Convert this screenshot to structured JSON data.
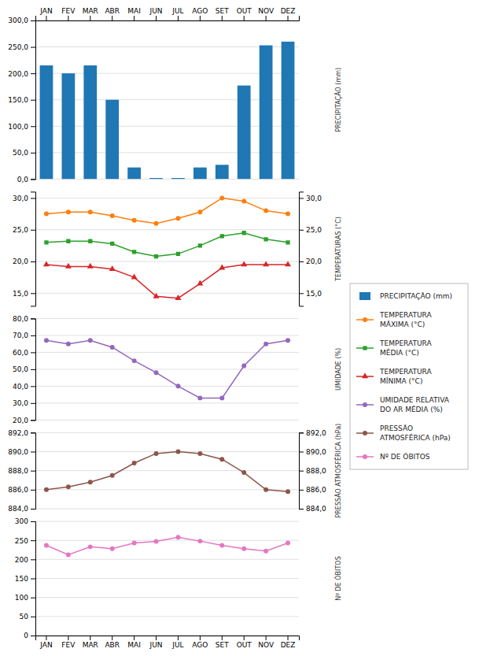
{
  "chart_data": [
    {
      "type": "bar",
      "ylabel": "PRECIPITAÇÃO (mm)",
      "categories": [
        "JAN",
        "FEV",
        "MAR",
        "ABR",
        "MAI",
        "JUN",
        "JUL",
        "AGO",
        "SET",
        "OUT",
        "NOV",
        "DEZ"
      ],
      "series": [
        {
          "name": "PRECIPITAÇÃO (mm)",
          "values": [
            215,
            200,
            215,
            150,
            22,
            2,
            2,
            22,
            27,
            177,
            253,
            260
          ]
        }
      ],
      "ylim": [
        0,
        300
      ],
      "yticks": [
        {
          "value": 0,
          "label": "0,0"
        },
        {
          "value": 50,
          "label": "50,0"
        },
        {
          "value": 100,
          "label": "100,0"
        },
        {
          "value": 150,
          "label": "150,0"
        },
        {
          "value": 200,
          "label": "200,0"
        },
        {
          "value": 250,
          "label": "250,0"
        },
        {
          "value": 300,
          "label": "300,0"
        }
      ],
      "grid": true,
      "legend": "right"
    },
    {
      "type": "line",
      "ylabel": "TEMPERATURAS (°C)",
      "categories": [
        "JAN",
        "FEV",
        "MAR",
        "ABR",
        "MAI",
        "JUN",
        "JUL",
        "AGO",
        "SET",
        "OUT",
        "NOV",
        "DEZ"
      ],
      "series": [
        {
          "name": "TEMPERATURA\nMÁXIMA (°C)",
          "marker": "circle",
          "values": [
            27.5,
            27.8,
            27.8,
            27.2,
            26.5,
            26.0,
            26.8,
            27.8,
            30.0,
            29.5,
            28.0,
            27.5
          ]
        },
        {
          "name": "TEMPERATURA\nMÉDIA (°C)",
          "marker": "square",
          "values": [
            23.0,
            23.2,
            23.2,
            22.8,
            21.5,
            20.8,
            21.2,
            22.5,
            24.0,
            24.5,
            23.5,
            23.0
          ]
        },
        {
          "name": "TEMPERATURA\nMÍNIMA (°C)",
          "marker": "triangle",
          "values": [
            19.5,
            19.2,
            19.2,
            18.8,
            17.5,
            14.5,
            14.2,
            16.5,
            19.0,
            19.5,
            19.5,
            19.5
          ]
        }
      ],
      "ylim": [
        13,
        31
      ],
      "yticks": [
        {
          "value": 15,
          "label": "15,0"
        },
        {
          "value": 20,
          "label": "20,0"
        },
        {
          "value": 25,
          "label": "25,0"
        },
        {
          "value": 30,
          "label": "30,0"
        }
      ],
      "y2lim": [
        13,
        31
      ],
      "y2ticks": [
        {
          "value": 15,
          "label": "15,0"
        },
        {
          "value": 20,
          "label": "20,0"
        },
        {
          "value": 25,
          "label": "25,0"
        },
        {
          "value": 30,
          "label": "30,0"
        }
      ],
      "grid": true,
      "tick_labels": "y",
      "legend": "right"
    },
    {
      "type": "line",
      "ylabel": "UMIDADE (%)",
      "categories": [
        "JAN",
        "FEV",
        "MAR",
        "ABR",
        "MAI",
        "JUN",
        "JUL",
        "AGO",
        "SET",
        "OUT",
        "NOV",
        "DEZ"
      ],
      "series": [
        {
          "name": "UMIDADE RELATIVA\nDO AR MÉDIA (%)",
          "marker": "circle",
          "values": [
            67,
            65,
            67,
            63,
            55,
            48,
            40,
            33,
            33,
            52,
            65,
            67
          ]
        }
      ],
      "ylim": [
        20,
        80
      ],
      "yticks": [
        {
          "value": 20,
          "label": "20,0"
        },
        {
          "value": 30,
          "label": "30,0"
        },
        {
          "value": 40,
          "label": "40,0"
        },
        {
          "value": 50,
          "label": "50,0"
        },
        {
          "value": 60,
          "label": "60,0"
        },
        {
          "value": 70,
          "label": "70,0"
        },
        {
          "value": 80,
          "label": "80,0"
        }
      ],
      "grid": true,
      "tick_labels": "y",
      "legend": "right"
    },
    {
      "type": "line",
      "ylabel": "PRESSÃO ATMOSFÉRICA (hPa)",
      "categories": [
        "JAN",
        "FEV",
        "MAR",
        "ABR",
        "MAI",
        "JUN",
        "JUL",
        "AGO",
        "SET",
        "OUT",
        "NOV",
        "DEZ"
      ],
      "series": [
        {
          "name": "PRESSÃO\nATMOSFÉRICA (hPa)",
          "marker": "circle",
          "values": [
            886.0,
            886.3,
            886.8,
            887.5,
            888.8,
            889.8,
            890.0,
            889.8,
            889.2,
            887.8,
            886.0,
            885.8
          ]
        }
      ],
      "ylim": [
        884,
        892
      ],
      "yticks": [
        {
          "value": 884,
          "label": "884,0"
        },
        {
          "value": 886,
          "label": "886,0"
        },
        {
          "value": 888,
          "label": "888,0"
        },
        {
          "value": 890,
          "label": "890,0"
        },
        {
          "value": 892,
          "label": "892,0"
        }
      ],
      "y2lim": [
        884,
        892
      ],
      "y2ticks": [
        {
          "value": 884,
          "label": "884,0"
        },
        {
          "value": 886,
          "label": "886,0"
        },
        {
          "value": 888,
          "label": "888,0"
        },
        {
          "value": 890,
          "label": "890,0"
        },
        {
          "value": 892,
          "label": "892,0"
        }
      ],
      "grid": true,
      "tick_labels": "y",
      "legend": "right"
    },
    {
      "type": "line",
      "ylabel": "Nº DE ÓBITOS",
      "categories": [
        "JAN",
        "FEV",
        "MAR",
        "ABR",
        "MAI",
        "JUN",
        "JUL",
        "AGO",
        "SET",
        "OUT",
        "NOV",
        "DEZ"
      ],
      "series": [
        {
          "name": "Nº DE ÓBITOS",
          "marker": "circle",
          "values": [
            237,
            212,
            233,
            228,
            243,
            247,
            258,
            248,
            237,
            228,
            222,
            243
          ]
        }
      ],
      "ylim": [
        0,
        300
      ],
      "yticks": [
        0,
        50,
        100,
        150,
        200,
        250,
        300
      ],
      "grid": true,
      "legend": "right"
    }
  ]
}
